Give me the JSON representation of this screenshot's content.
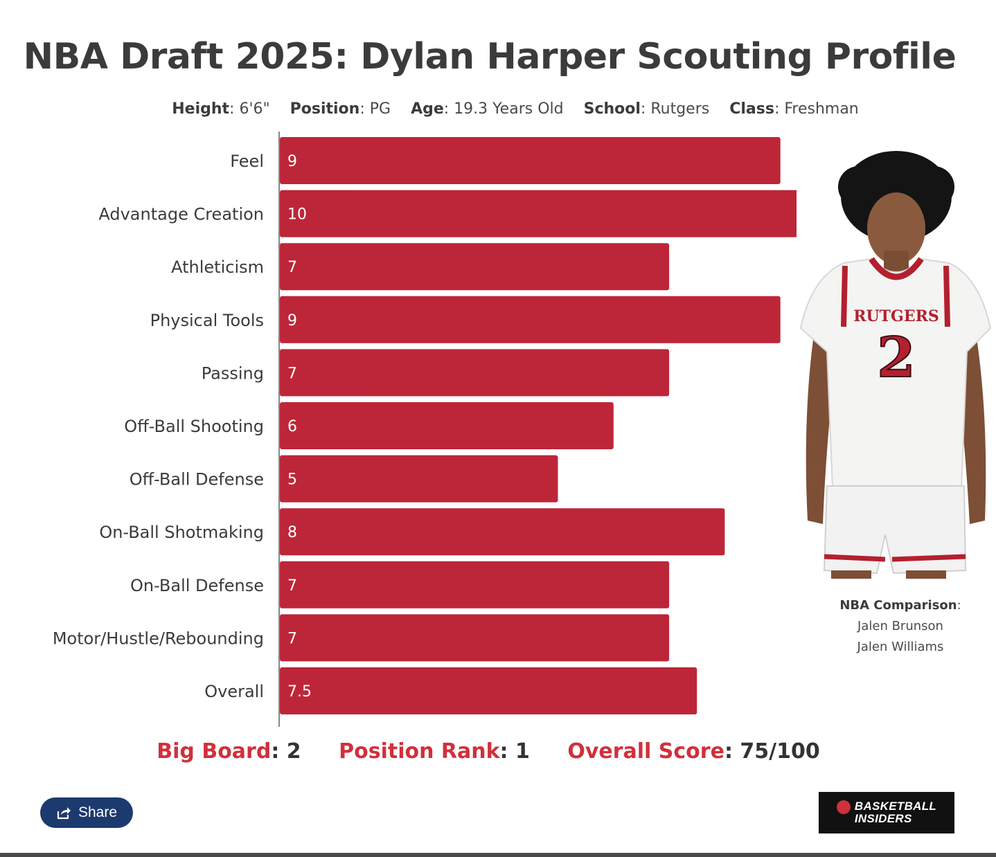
{
  "title": "NBA Draft 2025: Dylan Harper Scouting Profile",
  "meta": [
    {
      "key": "Height",
      "value": "6'6\""
    },
    {
      "key": "Position",
      "value": "PG"
    },
    {
      "key": "Age",
      "value": "19.3 Years Old"
    },
    {
      "key": "School",
      "value": "Rutgers"
    },
    {
      "key": "Class",
      "value": "Freshman"
    }
  ],
  "chart_data": {
    "type": "bar",
    "orientation": "horizontal",
    "categories": [
      "Feel",
      "Advantage Creation",
      "Athleticism",
      "Physical Tools",
      "Passing",
      "Off-Ball Shooting",
      "Off-Ball Defense",
      "On-Ball Shotmaking",
      "On-Ball Defense",
      "Motor/Hustle/Rebounding",
      "Overall"
    ],
    "values": [
      9,
      10,
      7,
      9,
      7,
      6,
      5,
      8,
      7,
      7,
      7.5
    ],
    "value_labels": [
      "9",
      "10",
      "7",
      "9",
      "7",
      "6",
      "5",
      "8",
      "7",
      "7",
      "7.5"
    ],
    "xlim": [
      0,
      10
    ],
    "bar_color": "#bd2638",
    "grid": false
  },
  "player": {
    "jersey_text": "RUTGERS",
    "jersey_number": "2"
  },
  "comparison": {
    "label": "NBA Comparison",
    "players": [
      "Jalen Brunson",
      "Jalen Williams"
    ]
  },
  "stats": [
    {
      "key": "Big Board",
      "value": "2"
    },
    {
      "key": "Position Rank",
      "value": "1"
    },
    {
      "key": "Overall Score",
      "value": "75/100"
    }
  ],
  "share": {
    "label": "Share",
    "icon": "share-icon"
  },
  "logo": {
    "line1": "BASKETBALL",
    "line2": "INSIDERS",
    "icon": "basketball-icon"
  },
  "colors": {
    "accent": "#d0303c",
    "bar": "#bd2638",
    "share_bg": "#1d3a6e",
    "text": "#3b3b3b"
  }
}
